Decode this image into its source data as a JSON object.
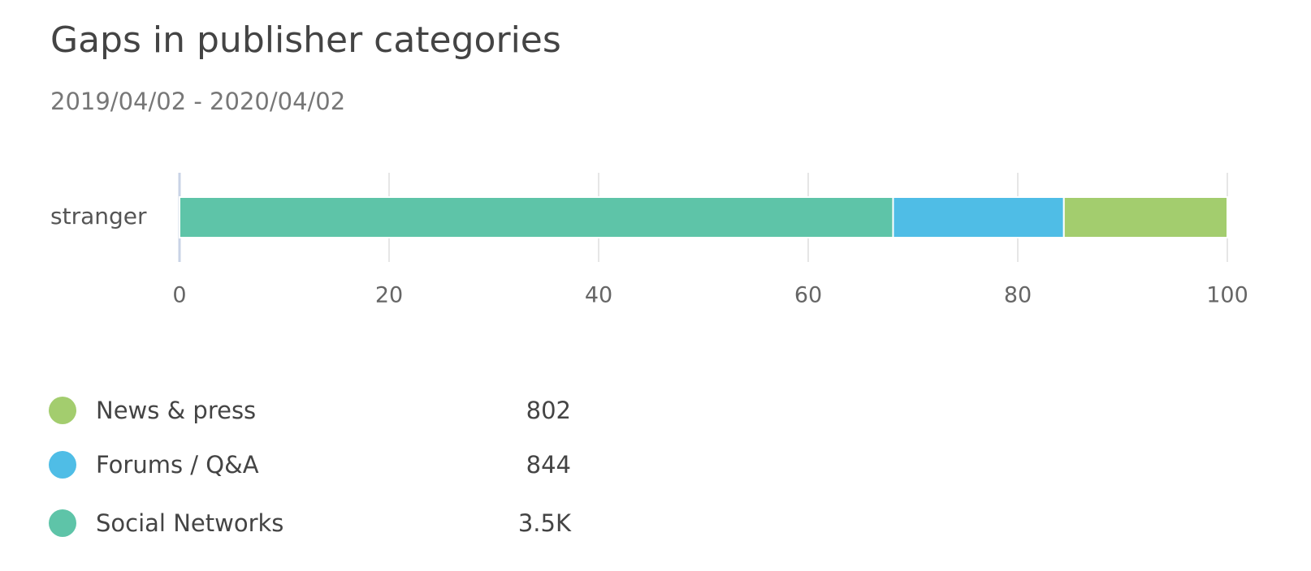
{
  "chart_data": {
    "type": "stacked-bar-horizontal",
    "title": "Gaps in publisher categories",
    "subtitle": "2019/04/02 - 2020/04/02",
    "categories": [
      "stranger"
    ],
    "series": [
      {
        "name": "News & press",
        "color": "#a3cd6e",
        "values": [
          15.6
        ],
        "total": 802
      },
      {
        "name": "Forums / Q&A",
        "color": "#4fbde6",
        "values": [
          16.3
        ],
        "total": 844
      },
      {
        "name": "Social Networks",
        "color": "#5ec4a8",
        "values": [
          68.1
        ],
        "total": 3500,
        "total_label": "3.5K"
      }
    ],
    "xlim": [
      0,
      100
    ],
    "xticks": [
      0,
      20,
      40,
      60,
      80,
      100
    ],
    "grid": true
  }
}
